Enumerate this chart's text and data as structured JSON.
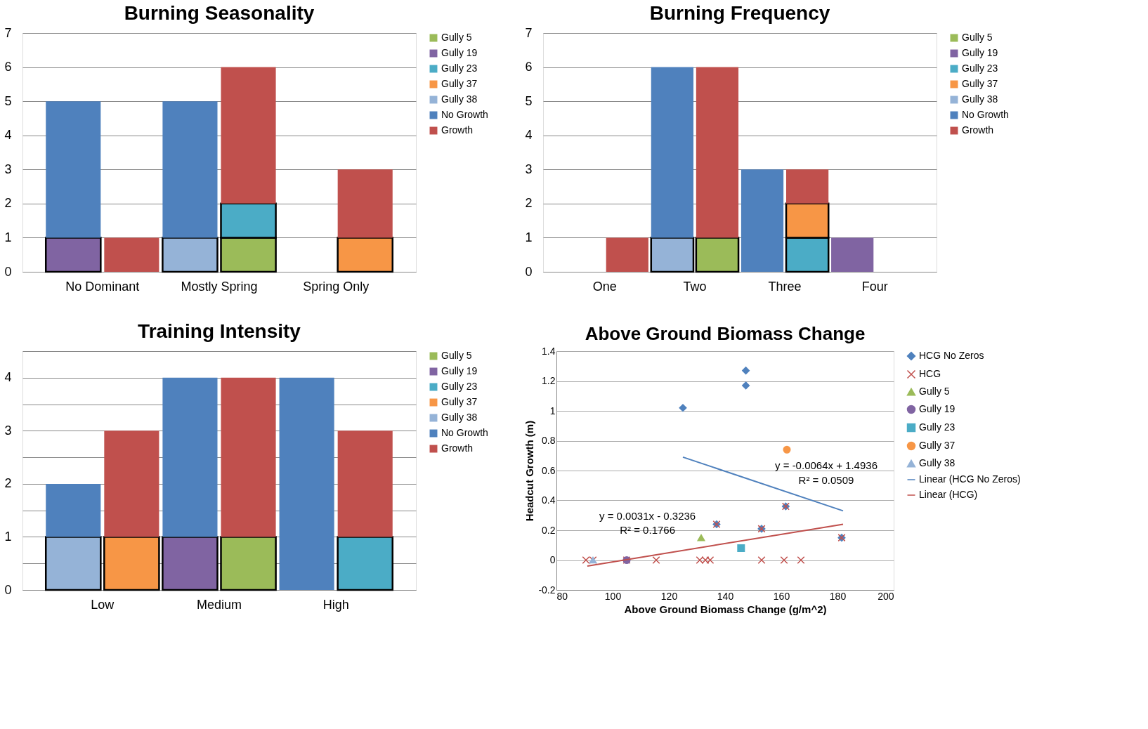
{
  "chart_data": [
    {
      "type": "bar",
      "stacked": true,
      "title": "Burning Seasonality",
      "categories": [
        "No Dominant",
        null,
        "Mostly Spring",
        null,
        "Spring Only",
        null
      ],
      "ylim": [
        0,
        7
      ],
      "yticks": [
        0,
        1,
        2,
        3,
        4,
        5,
        6,
        7
      ],
      "grid": "y",
      "legend": "right",
      "series": [
        {
          "name": "Gully 5",
          "color": "#9bbb59",
          "values": [
            null,
            null,
            null,
            1,
            null,
            null
          ]
        },
        {
          "name": "Gully 19",
          "color": "#8064a2",
          "values": [
            1,
            null,
            null,
            null,
            null,
            null
          ]
        },
        {
          "name": "Gully 23",
          "color": "#4bacc6",
          "values": [
            null,
            null,
            null,
            1,
            null,
            null
          ]
        },
        {
          "name": "Gully 37",
          "color": "#f79646",
          "values": [
            null,
            null,
            null,
            null,
            null,
            1
          ]
        },
        {
          "name": "Gully 38",
          "color": "#95b3d7",
          "values": [
            null,
            null,
            1,
            null,
            null,
            null
          ]
        },
        {
          "name": "No Growth",
          "color": "#4f81bd",
          "values": [
            4,
            null,
            4,
            null,
            null,
            null
          ]
        },
        {
          "name": "Growth",
          "color": "#c0504d",
          "values": [
            null,
            1,
            null,
            4,
            null,
            2
          ]
        }
      ]
    },
    {
      "type": "bar",
      "stacked": true,
      "title": "Burning Frequency",
      "categories": [
        "One",
        null,
        "Two",
        null,
        "Three",
        null,
        "Four",
        null
      ],
      "ylim": [
        0,
        7
      ],
      "yticks": [
        0,
        1,
        2,
        3,
        4,
        5,
        6,
        7
      ],
      "grid": "y",
      "legend": "right",
      "series": [
        {
          "name": "Gully 5",
          "color": "#9bbb59",
          "values": [
            null,
            null,
            null,
            1,
            null,
            null,
            null,
            null
          ]
        },
        {
          "name": "Gully 19",
          "color": "#8064a2",
          "values": [
            null,
            null,
            null,
            null,
            null,
            null,
            1,
            null
          ]
        },
        {
          "name": "Gully 23",
          "color": "#4bacc6",
          "values": [
            null,
            null,
            null,
            null,
            null,
            1,
            null,
            null
          ]
        },
        {
          "name": "Gully 37",
          "color": "#f79646",
          "values": [
            null,
            null,
            null,
            null,
            null,
            1,
            null,
            null
          ]
        },
        {
          "name": "Gully 38",
          "color": "#95b3d7",
          "values": [
            null,
            null,
            1,
            null,
            null,
            null,
            null,
            null
          ]
        },
        {
          "name": "No Growth",
          "color": "#4f81bd",
          "values": [
            null,
            null,
            5,
            null,
            3,
            null,
            null,
            null
          ]
        },
        {
          "name": "Growth",
          "color": "#c0504d",
          "values": [
            null,
            1,
            null,
            5,
            null,
            1,
            null,
            null
          ]
        }
      ]
    },
    {
      "type": "bar",
      "stacked": true,
      "title": "Training Intensity",
      "categories": [
        "Low",
        null,
        "Medium",
        null,
        "High",
        null
      ],
      "ylim": [
        0,
        4.5
      ],
      "yticks": [
        0,
        {
          "value": 0.5,
          "label": null
        },
        1,
        {
          "value": 1.5,
          "label": null
        },
        2,
        {
          "value": 2.5,
          "label": null
        },
        3,
        {
          "value": 3.5,
          "label": null
        },
        4,
        {
          "value": 4.5,
          "label": null
        }
      ],
      "grid": "y",
      "legend": "right",
      "series": [
        {
          "name": "Gully 5",
          "color": "#9bbb59",
          "values": [
            null,
            null,
            null,
            1,
            null,
            null
          ]
        },
        {
          "name": "Gully 19",
          "color": "#8064a2",
          "values": [
            null,
            null,
            1,
            null,
            null,
            null
          ]
        },
        {
          "name": "Gully 23",
          "color": "#4bacc6",
          "values": [
            null,
            null,
            null,
            null,
            null,
            1
          ]
        },
        {
          "name": "Gully 37",
          "color": "#f79646",
          "values": [
            null,
            1,
            null,
            null,
            null,
            null
          ]
        },
        {
          "name": "Gully 38",
          "color": "#95b3d7",
          "values": [
            1,
            null,
            null,
            null,
            null,
            null
          ]
        },
        {
          "name": "No Growth",
          "color": "#4f81bd",
          "values": [
            1,
            null,
            3,
            null,
            4,
            null
          ]
        },
        {
          "name": "Growth",
          "color": "#c0504d",
          "values": [
            null,
            2,
            null,
            3,
            null,
            2
          ]
        }
      ]
    },
    {
      "type": "scatter",
      "title": "Above Ground Biomass Change",
      "xlabel": "Above Ground  Biomass Change (g/m^2)",
      "ylabel": "Headcut Growth (m)",
      "xlim": [
        80,
        200
      ],
      "xticks": [
        80,
        100,
        120,
        140,
        160,
        180,
        200
      ],
      "ylim": [
        -0.2,
        1.4
      ],
      "yticks": [
        -0.2,
        0,
        0.2,
        0.4,
        0.6,
        0.8,
        1,
        1.2,
        1.4
      ],
      "grid": "y",
      "legend": "right",
      "annotations": [
        "y = -0.0064x + 1.4936",
        "R² = 0.0509",
        "y = 0.0031x - 0.3236",
        "R² = 0.1766"
      ],
      "series": [
        {
          "name": "HCG No Zeros",
          "color": "#4f81bd",
          "marker": "diamond",
          "x": [
            125,
            147.4,
            147.4,
            137,
            153,
            161.6,
            181.5
          ],
          "values": [
            1.02,
            1.27,
            1.17,
            0.24,
            0.21,
            0.36,
            0.15
          ]
        },
        {
          "name": "HCG",
          "color": "#c0504d",
          "marker": "cross",
          "x": [
            90.5,
            93,
            105,
            115.5,
            131,
            133,
            134.7,
            153,
            161,
            167,
            137,
            153,
            161.6,
            181.5
          ],
          "values": [
            0,
            0,
            0,
            0,
            0,
            0,
            0,
            0,
            0,
            0,
            0.24,
            0.21,
            0.36,
            0.15
          ]
        },
        {
          "name": "Gully 5",
          "color": "#9bbb59",
          "marker": "triangle",
          "x": [
            131.5
          ],
          "values": [
            0.15
          ]
        },
        {
          "name": "Gully 19",
          "color": "#8064a2",
          "marker": "circle",
          "x": [
            105
          ],
          "values": [
            0
          ]
        },
        {
          "name": "Gully 23",
          "color": "#4bacc6",
          "marker": "square",
          "x": [
            145.7
          ],
          "values": [
            0.08
          ]
        },
        {
          "name": "Gully 37",
          "color": "#f79646",
          "marker": "circle",
          "x": [
            162
          ],
          "values": [
            0.74
          ]
        },
        {
          "name": "Gully 38",
          "color": "#95b3d7",
          "marker": "triangle",
          "x": [
            93
          ],
          "values": [
            0
          ]
        },
        {
          "name": "Linear (HCG No Zeros)",
          "type": "line",
          "color": "#4f81bd",
          "x": [
            125,
            182
          ],
          "values": [
            0.69,
            0.33
          ]
        },
        {
          "name": "Linear (HCG)",
          "type": "line",
          "color": "#c0504d",
          "x": [
            91,
            182
          ],
          "values": [
            -0.04,
            0.24
          ]
        }
      ]
    }
  ]
}
